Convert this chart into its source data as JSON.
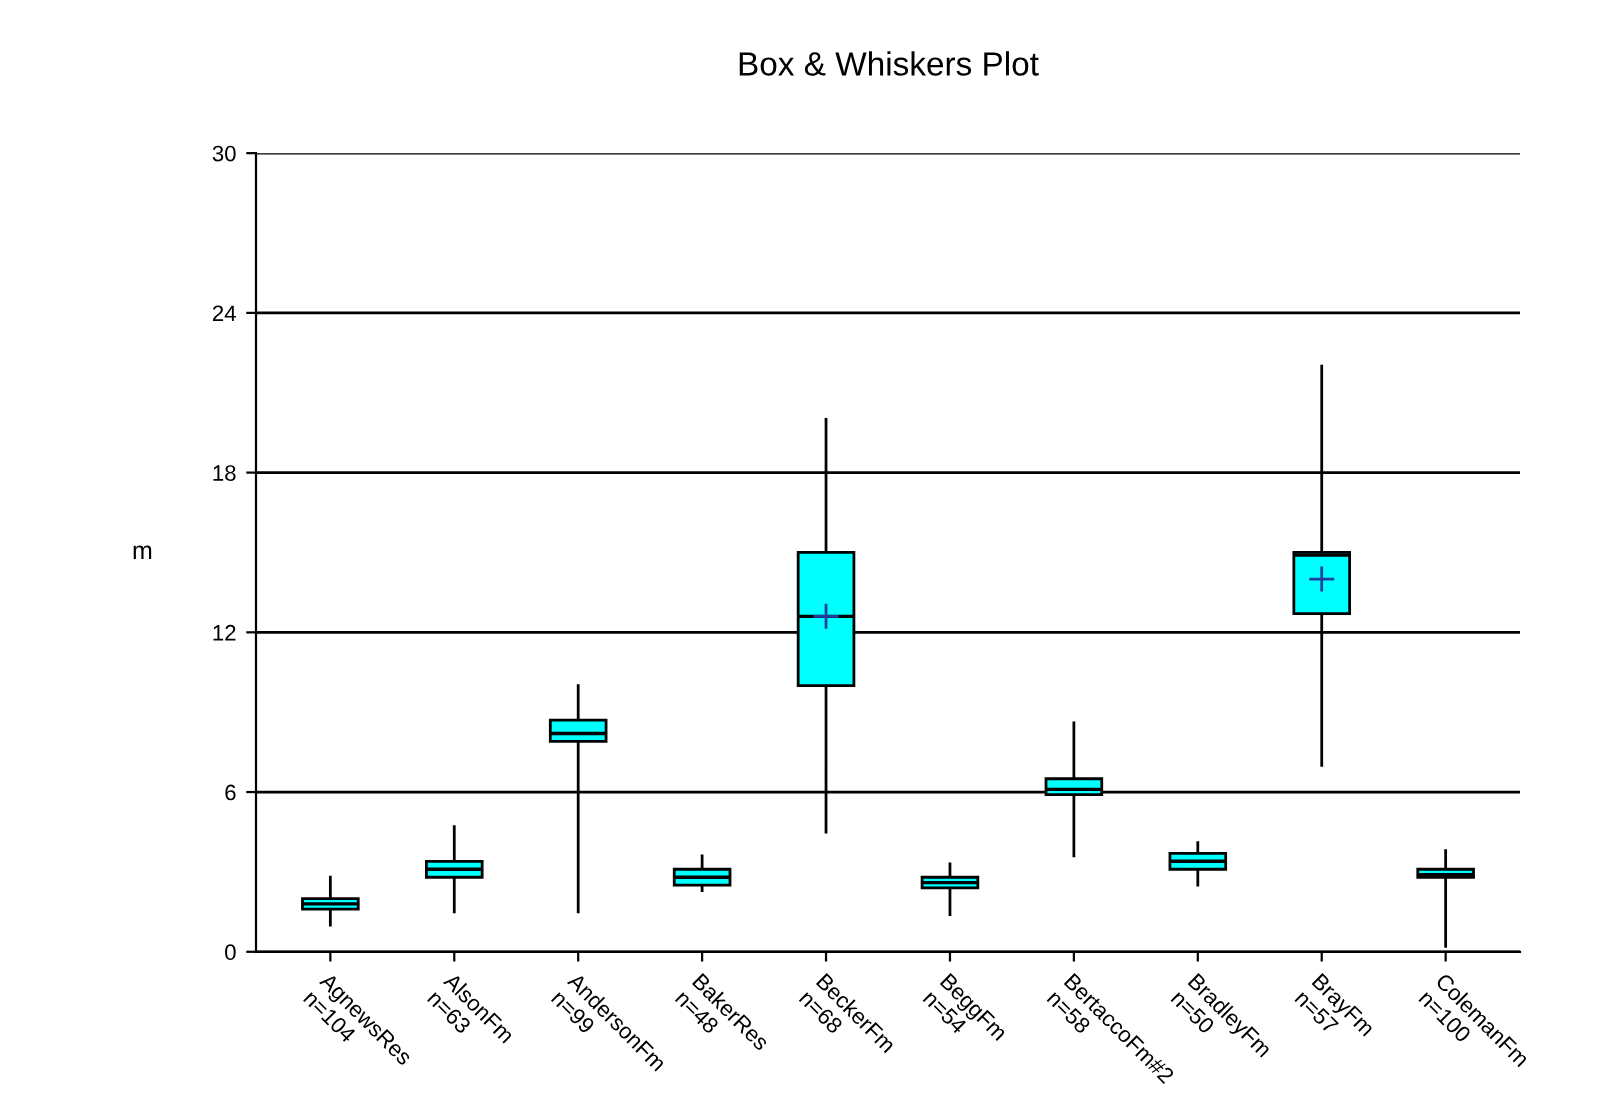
{
  "chart_data": {
    "type": "box",
    "title": "Box & Whiskers Plot",
    "ylabel": "m",
    "categories": [
      "AgnewsRes\nn=104",
      "AlsonFm\nn=63",
      "AndersonFm\nn=99",
      "BakerRes\nn=48",
      "BeckerFm\nn=68",
      "BeggFm\nn=54",
      "BertaccoFm#2\nn=58",
      "BradleyFm\nn=50",
      "BrayFm\nn=57",
      "ColemanFm\nn=100"
    ],
    "boxes": [
      {
        "low": 1.0,
        "q1": 1.6,
        "median": 1.8,
        "q3": 2.0,
        "high": 2.8
      },
      {
        "low": 1.5,
        "q1": 2.8,
        "median": 3.1,
        "q3": 3.4,
        "high": 4.7
      },
      {
        "low": 1.5,
        "q1": 7.9,
        "median": 8.2,
        "q3": 8.7,
        "high": 10.0
      },
      {
        "low": 2.3,
        "q1": 2.5,
        "median": 2.8,
        "q3": 3.1,
        "high": 3.6
      },
      {
        "low": 4.5,
        "q1": 10.0,
        "median": 12.6,
        "q3": 15.0,
        "high": 20.0,
        "mean": 12.6
      },
      {
        "low": 1.4,
        "q1": 2.4,
        "median": 2.6,
        "q3": 2.8,
        "high": 3.3
      },
      {
        "low": 3.6,
        "q1": 5.9,
        "median": 6.1,
        "q3": 6.5,
        "high": 8.6
      },
      {
        "low": 2.5,
        "q1": 3.1,
        "median": 3.4,
        "q3": 3.7,
        "high": 4.1
      },
      {
        "low": 7.0,
        "q1": 12.7,
        "median": 14.9,
        "q3": 15.0,
        "high": 22.0,
        "mean": 14.0
      },
      {
        "low": 0.2,
        "q1": 2.8,
        "median": 2.9,
        "q3": 3.1,
        "high": 3.8
      }
    ],
    "color": "#00ffff",
    "ylim": [
      0,
      30
    ],
    "yticks": [
      0,
      6,
      12,
      18,
      24,
      30
    ],
    "grid": "y"
  }
}
